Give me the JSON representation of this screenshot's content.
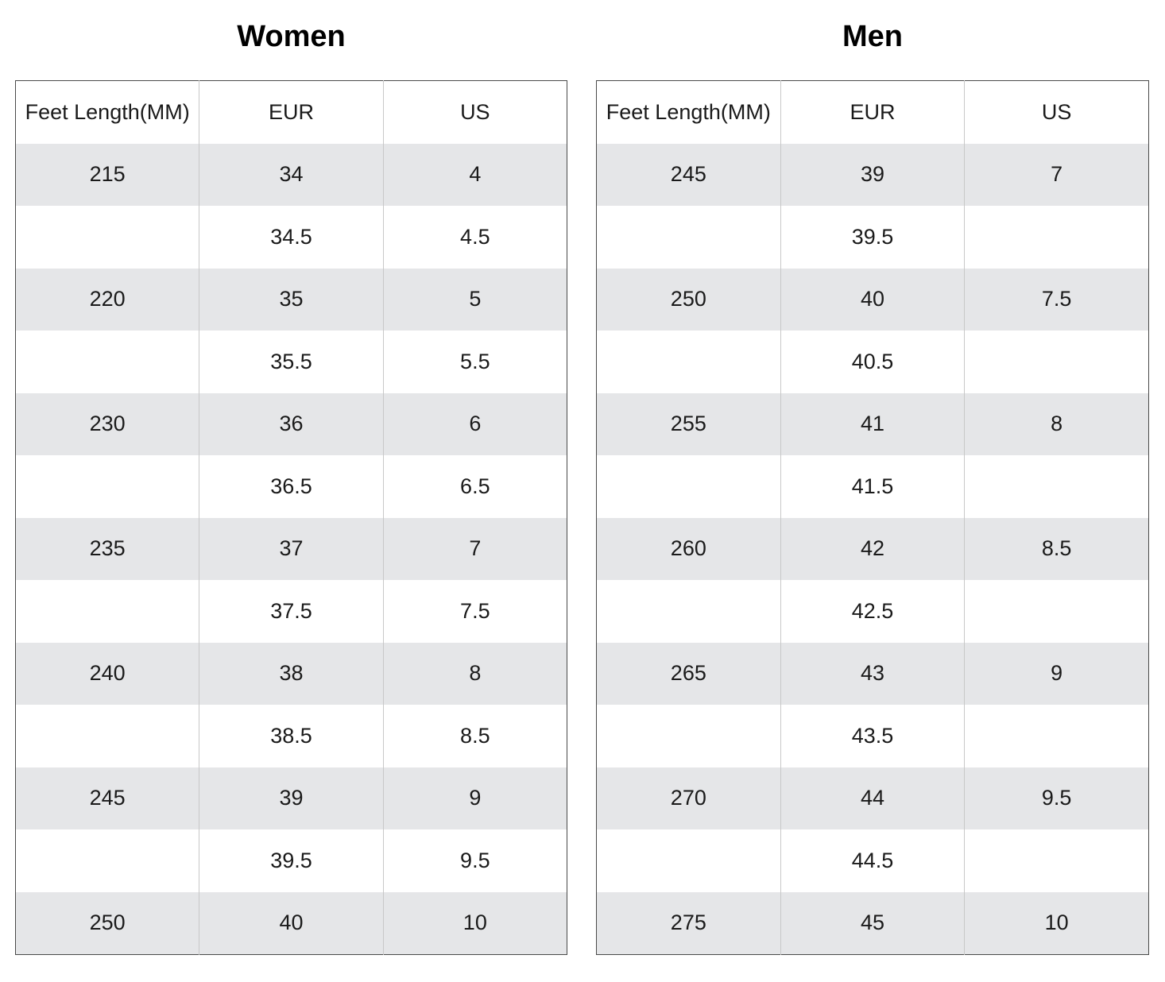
{
  "women": {
    "title": "Women",
    "headers": [
      "Feet Length(MM)",
      "EUR",
      "US"
    ],
    "rows": [
      [
        "215",
        "34",
        "4"
      ],
      [
        "",
        "34.5",
        "4.5"
      ],
      [
        "220",
        "35",
        "5"
      ],
      [
        "",
        "35.5",
        "5.5"
      ],
      [
        "230",
        "36",
        "6"
      ],
      [
        "",
        "36.5",
        "6.5"
      ],
      [
        "235",
        "37",
        "7"
      ],
      [
        "",
        "37.5",
        "7.5"
      ],
      [
        "240",
        "38",
        "8"
      ],
      [
        "",
        "38.5",
        "8.5"
      ],
      [
        "245",
        "39",
        "9"
      ],
      [
        "",
        "39.5",
        "9.5"
      ],
      [
        "250",
        "40",
        "10"
      ]
    ]
  },
  "men": {
    "title": "Men",
    "headers": [
      "Feet Length(MM)",
      "EUR",
      "US"
    ],
    "rows": [
      [
        "245",
        "39",
        "7"
      ],
      [
        "",
        "39.5",
        ""
      ],
      [
        "250",
        "40",
        "7.5"
      ],
      [
        "",
        "40.5",
        ""
      ],
      [
        "255",
        "41",
        "8"
      ],
      [
        "",
        "41.5",
        ""
      ],
      [
        "260",
        "42",
        "8.5"
      ],
      [
        "",
        "42.5",
        ""
      ],
      [
        "265",
        "43",
        "9"
      ],
      [
        "",
        "43.5",
        ""
      ],
      [
        "270",
        "44",
        "9.5"
      ],
      [
        "",
        "44.5",
        ""
      ],
      [
        "275",
        "45",
        "10"
      ]
    ]
  },
  "colors": {
    "shaded_row": "#e5e6e8",
    "plain_row": "#ffffff",
    "border": "#4a4a4a",
    "divider": "#c8c8c8"
  }
}
